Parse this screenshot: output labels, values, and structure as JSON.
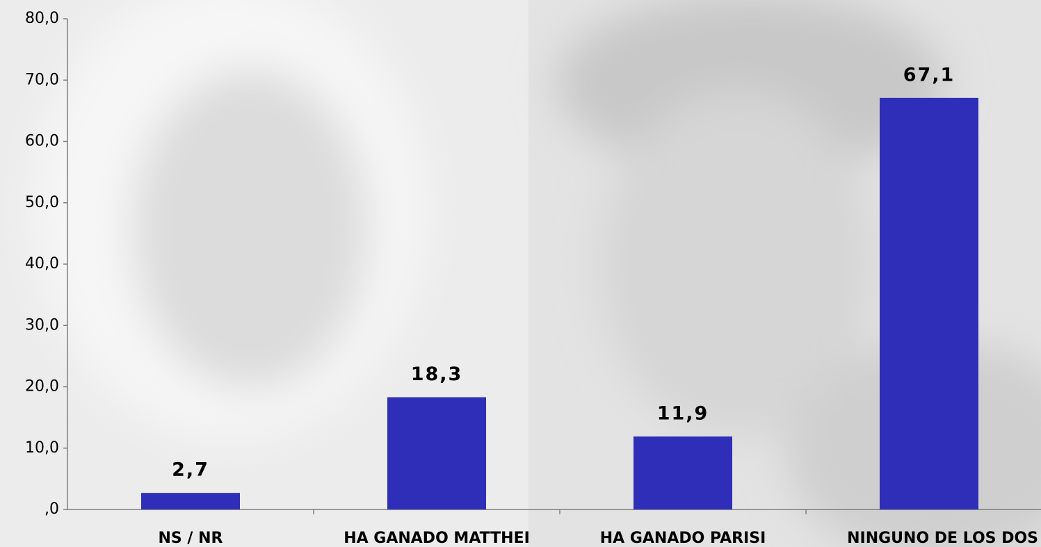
{
  "chart_data": {
    "type": "bar",
    "categories": [
      "NS / NR",
      "HA GANADO MATTHEI",
      "HA GANADO PARISI",
      "NINGUNO DE LOS DOS"
    ],
    "values": [
      2.7,
      18.3,
      11.9,
      67.1
    ],
    "value_labels": [
      "2,7",
      "18,3",
      "11,9",
      "67,1"
    ],
    "color": "#2e2eb8",
    "ylim": [
      0,
      80
    ],
    "yticks": [
      {
        "value": 0,
        "label": ",0"
      },
      {
        "value": 10,
        "label": "10,0"
      },
      {
        "value": 20,
        "label": "20,0"
      },
      {
        "value": 30,
        "label": "30,0"
      },
      {
        "value": 40,
        "label": "40,0"
      },
      {
        "value": 50,
        "label": "50,0"
      },
      {
        "value": 60,
        "label": "60,0"
      },
      {
        "value": 70,
        "label": "70,0"
      },
      {
        "value": 80,
        "label": "80,0"
      }
    ],
    "grid": false
  }
}
